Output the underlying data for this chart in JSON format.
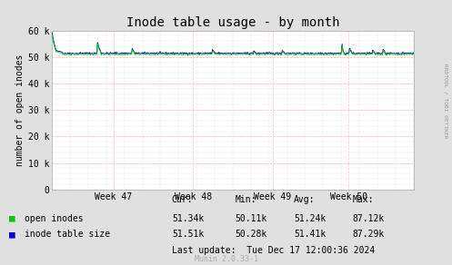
{
  "title": "Inode table usage - by month",
  "ylabel": "number of open inodes",
  "background_color": "#e0e0e0",
  "plot_bg_color": "#ffffff",
  "grid_color_major": "#ffaaaa",
  "grid_color_minor": "#e8e8e8",
  "ylim": [
    0,
    60000
  ],
  "yticks": [
    0,
    10000,
    20000,
    30000,
    40000,
    50000,
    60000
  ],
  "ytick_labels": [
    "0",
    "10 k",
    "20 k",
    "30 k",
    "40 k",
    "50 k",
    "60 k"
  ],
  "xtick_labels": [
    "Week 47",
    "Week 48",
    "Week 49",
    "Week 50"
  ],
  "color_green": "#00cc00",
  "color_blue": "#0000cc",
  "legend_labels": [
    "open inodes",
    "inode table size"
  ],
  "stats_headers": [
    "Cur:",
    "Min:",
    "Avg:",
    "Max:"
  ],
  "stats_cur": [
    "51.34k",
    "51.51k"
  ],
  "stats_min": [
    "50.11k",
    "50.28k"
  ],
  "stats_avg": [
    "51.24k",
    "51.41k"
  ],
  "stats_max": [
    "87.12k",
    "87.29k"
  ],
  "last_update": "Last update:  Tue Dec 17 12:00:36 2024",
  "munin_label": "Munin 2.0.33-1",
  "rrdtool_label": "RRDTOOL / TOBI OETIKER",
  "title_fontsize": 10,
  "axis_fontsize": 7,
  "legend_fontsize": 7,
  "stats_fontsize": 7
}
